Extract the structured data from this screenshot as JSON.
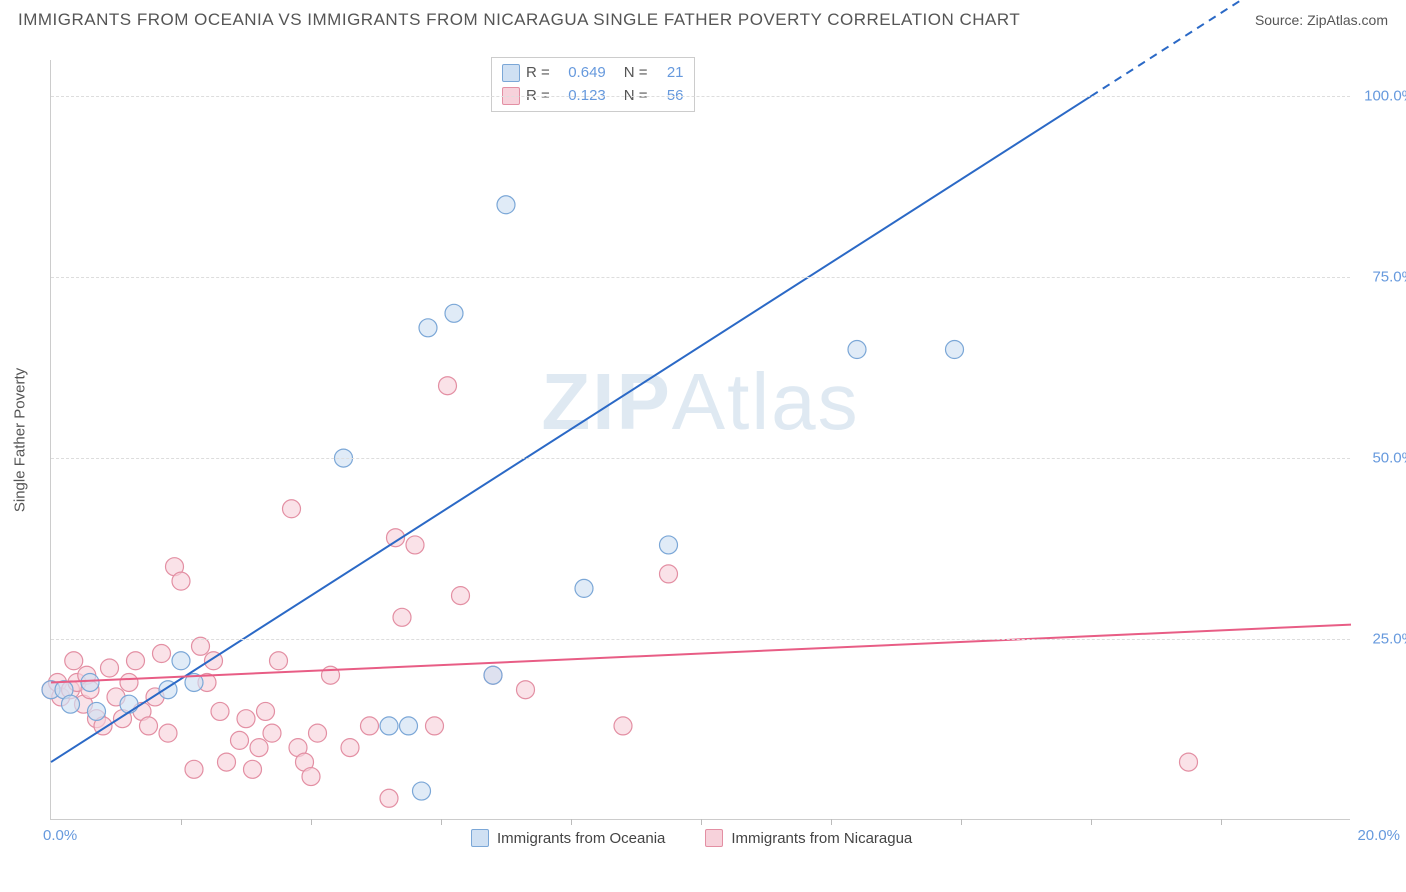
{
  "title": "IMMIGRANTS FROM OCEANIA VS IMMIGRANTS FROM NICARAGUA SINGLE FATHER POVERTY CORRELATION CHART",
  "source": "Source: ZipAtlas.com",
  "watermark_zip": "ZIP",
  "watermark_atlas": "Atlas",
  "ylabel": "Single Father Poverty",
  "chart": {
    "type": "scatter",
    "background_color": "#ffffff",
    "grid_color": "#dddddd",
    "axis_color": "#cccccc",
    "tick_label_color": "#6699dd",
    "tick_fontsize": 15,
    "title_color": "#555555",
    "title_fontsize": 17,
    "xlim": [
      0,
      20
    ],
    "ylim": [
      0,
      105
    ],
    "x_tick_marks": [
      2,
      4,
      6,
      8,
      10,
      12,
      14,
      16,
      18
    ],
    "x_start_label": "0.0%",
    "x_end_label": "20.0%",
    "y_gridlines": [
      0,
      25,
      50,
      75,
      100
    ],
    "y_labels": {
      "25": "25.0%",
      "50": "50.0%",
      "75": "75.0%",
      "100": "100.0%"
    },
    "marker_radius": 9,
    "marker_stroke_width": 1.2,
    "series": [
      {
        "name": "Immigrants from Oceania",
        "fill": "#cfe0f3",
        "stroke": "#7ba7d7",
        "fill_opacity": 0.65,
        "R": "0.649",
        "N": "21",
        "trend": {
          "x1": 0,
          "y1": 8,
          "x2": 16,
          "y2": 100,
          "dash_from_x": 16,
          "dash_to_x": 20,
          "dash_to_y": 123,
          "color": "#2b69c6",
          "width": 2
        },
        "points": [
          [
            0.0,
            18
          ],
          [
            0.2,
            18
          ],
          [
            0.3,
            16
          ],
          [
            0.6,
            19
          ],
          [
            0.7,
            15
          ],
          [
            1.2,
            16
          ],
          [
            1.8,
            18
          ],
          [
            2.0,
            22
          ],
          [
            2.2,
            19
          ],
          [
            4.5,
            50
          ],
          [
            5.2,
            13
          ],
          [
            5.5,
            13
          ],
          [
            5.7,
            4
          ],
          [
            5.8,
            68
          ],
          [
            6.2,
            70
          ],
          [
            6.8,
            20
          ],
          [
            7.0,
            85
          ],
          [
            8.2,
            32
          ],
          [
            9.5,
            38
          ],
          [
            12.4,
            65
          ],
          [
            13.9,
            65
          ]
        ]
      },
      {
        "name": "Immigrants from Nicaragua",
        "fill": "#f7d2db",
        "stroke": "#e38fa3",
        "fill_opacity": 0.65,
        "R": "0.123",
        "N": "56",
        "trend": {
          "x1": 0,
          "y1": 19,
          "x2": 20,
          "y2": 27,
          "color": "#e85d85",
          "width": 2
        },
        "points": [
          [
            0.0,
            18
          ],
          [
            0.1,
            19
          ],
          [
            0.15,
            17
          ],
          [
            0.3,
            18
          ],
          [
            0.35,
            22
          ],
          [
            0.4,
            19
          ],
          [
            0.5,
            16
          ],
          [
            0.55,
            20
          ],
          [
            0.6,
            18
          ],
          [
            0.7,
            14
          ],
          [
            0.8,
            13
          ],
          [
            0.9,
            21
          ],
          [
            1.0,
            17
          ],
          [
            1.1,
            14
          ],
          [
            1.2,
            19
          ],
          [
            1.3,
            22
          ],
          [
            1.4,
            15
          ],
          [
            1.5,
            13
          ],
          [
            1.6,
            17
          ],
          [
            1.7,
            23
          ],
          [
            1.8,
            12
          ],
          [
            1.9,
            35
          ],
          [
            2.0,
            33
          ],
          [
            2.2,
            7
          ],
          [
            2.3,
            24
          ],
          [
            2.4,
            19
          ],
          [
            2.5,
            22
          ],
          [
            2.6,
            15
          ],
          [
            2.7,
            8
          ],
          [
            2.9,
            11
          ],
          [
            3.0,
            14
          ],
          [
            3.1,
            7
          ],
          [
            3.2,
            10
          ],
          [
            3.3,
            15
          ],
          [
            3.4,
            12
          ],
          [
            3.5,
            22
          ],
          [
            3.7,
            43
          ],
          [
            3.8,
            10
          ],
          [
            3.9,
            8
          ],
          [
            4.0,
            6
          ],
          [
            4.1,
            12
          ],
          [
            4.3,
            20
          ],
          [
            4.6,
            10
          ],
          [
            4.9,
            13
          ],
          [
            5.2,
            3
          ],
          [
            5.3,
            39
          ],
          [
            5.4,
            28
          ],
          [
            5.6,
            38
          ],
          [
            5.9,
            13
          ],
          [
            6.1,
            60
          ],
          [
            6.3,
            31
          ],
          [
            6.8,
            20
          ],
          [
            7.3,
            18
          ],
          [
            8.8,
            13
          ],
          [
            9.5,
            34
          ],
          [
            17.5,
            8
          ]
        ]
      }
    ]
  },
  "legend_box": {
    "r_label": "R =",
    "n_label": "N ="
  },
  "bottom_legend": {
    "series1": "Immigrants from Oceania",
    "series2": "Immigrants from Nicaragua"
  }
}
